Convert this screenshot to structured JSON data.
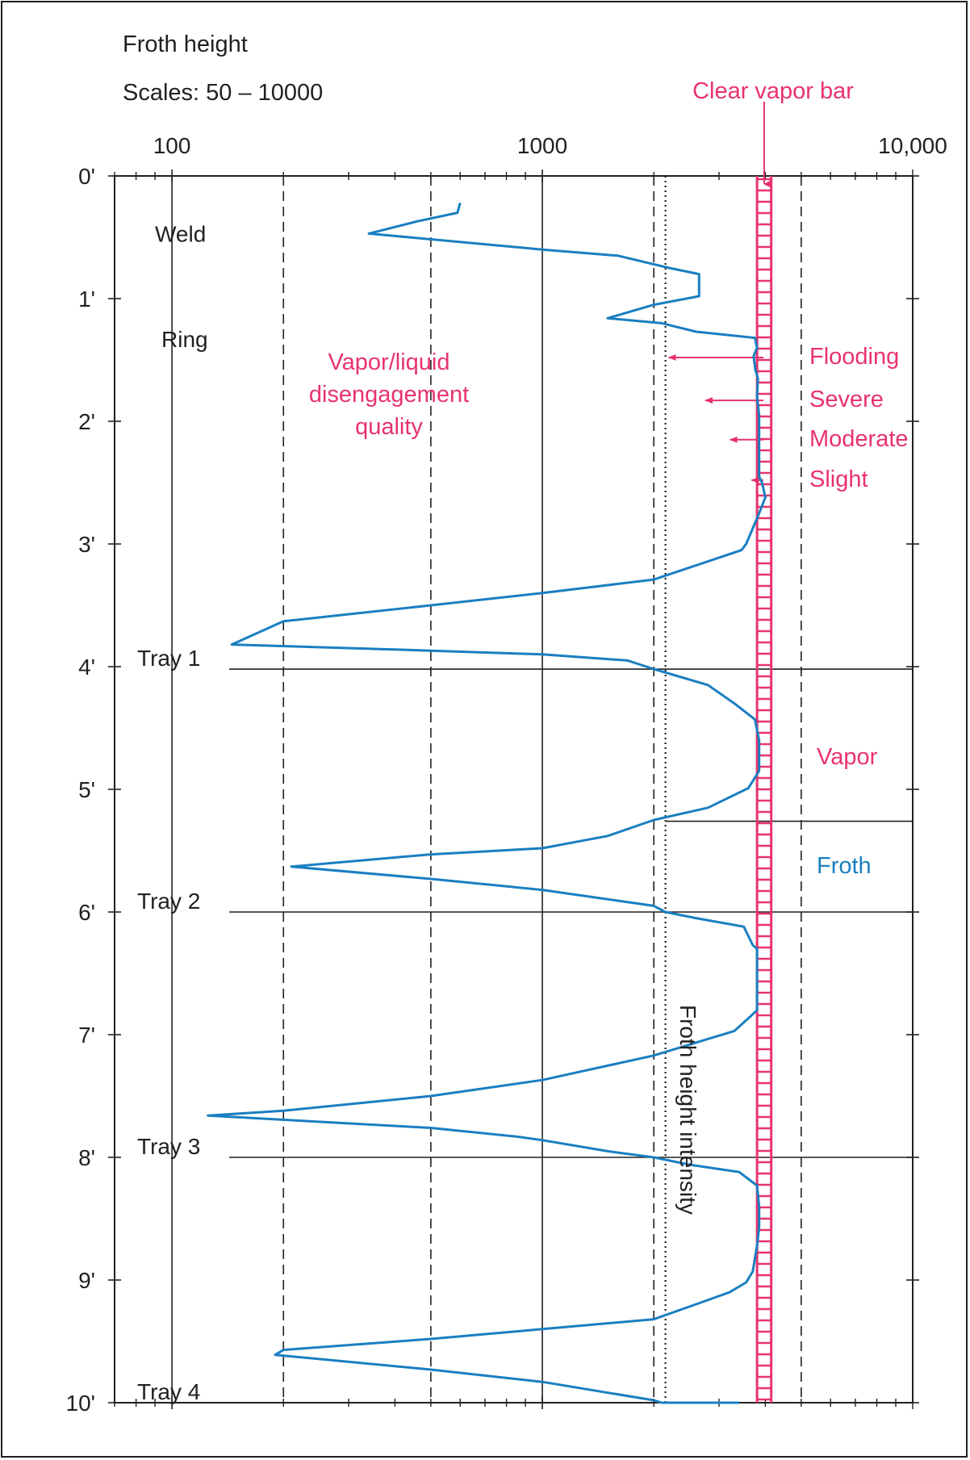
{
  "chart_data": {
    "type": "line",
    "title": "Froth height",
    "subtitle": "Scales: 50 – 10000",
    "x_scale": "log",
    "xlim": [
      70,
      10000
    ],
    "ylim": [
      0,
      10
    ],
    "y_inverted": true,
    "x_tick_labels": [
      {
        "value": 100,
        "label": "100"
      },
      {
        "value": 1000,
        "label": "1000"
      },
      {
        "value": 10000,
        "label": "10,000"
      }
    ],
    "y_tick_labels": [
      {
        "value": 0,
        "label": "0'"
      },
      {
        "value": 1,
        "label": "1'"
      },
      {
        "value": 2,
        "label": "2'"
      },
      {
        "value": 3,
        "label": "3'"
      },
      {
        "value": 4,
        "label": "4'"
      },
      {
        "value": 5,
        "label": "5'"
      },
      {
        "value": 6,
        "label": "6'"
      },
      {
        "value": 7,
        "label": "7'"
      },
      {
        "value": 8,
        "label": "8'"
      },
      {
        "value": 9,
        "label": "9'"
      },
      {
        "value": 10,
        "label": "10'"
      }
    ],
    "dashed_reference_lines_x": [
      200,
      500,
      2000,
      5000
    ],
    "dotted_reference_line_x": 2150,
    "dotted_line_label": "Froth height intensity",
    "clear_vapor_bar": {
      "label": "Clear vapor bar",
      "x_range": [
        3800,
        4150
      ],
      "color": "#e8336d"
    },
    "trays": [
      {
        "label": "Tray 1",
        "y": 4.02
      },
      {
        "label": "Tray 2",
        "y": 6.0
      },
      {
        "label": "Tray 3",
        "y": 8.0
      },
      {
        "label": "Tray 4",
        "y": 10.0
      }
    ],
    "vapor_froth_divider_y": 5.26,
    "annotations": [
      {
        "label": "Weld",
        "y": 0.47
      },
      {
        "label": "Ring",
        "y": 1.33
      },
      {
        "label": "Vapor/liquid",
        "line": 1
      },
      {
        "label": "disengagement",
        "line": 2
      },
      {
        "label": "quality",
        "line": 3
      },
      {
        "label": "Vapor",
        "y": 4.73
      },
      {
        "label": "Froth",
        "y": 5.62
      }
    ],
    "disengagement_levels": [
      {
        "label": "Flooding",
        "y": 1.48,
        "arrow_to_x": 2150
      },
      {
        "label": "Severe",
        "y": 1.83,
        "arrow_to_x": 2700
      },
      {
        "label": "Moderate",
        "y": 2.15,
        "arrow_to_x": 3150
      },
      {
        "label": "Slight",
        "y": 2.48,
        "arrow_to_x": 3600
      }
    ],
    "series": [
      {
        "color": "#1a7fc1",
        "points": [
          [
            600,
            0.22
          ],
          [
            590,
            0.3
          ],
          [
            460,
            0.37
          ],
          [
            340,
            0.47
          ],
          [
            1000,
            0.6
          ],
          [
            1600,
            0.65
          ],
          [
            2200,
            0.75
          ],
          [
            2650,
            0.8
          ],
          [
            2650,
            0.98
          ],
          [
            2000,
            1.05
          ],
          [
            1500,
            1.16
          ],
          [
            2100,
            1.2
          ],
          [
            2600,
            1.27
          ],
          [
            3750,
            1.32
          ],
          [
            3800,
            1.4
          ],
          [
            3720,
            1.47
          ],
          [
            3760,
            1.58
          ],
          [
            3820,
            1.65
          ],
          [
            3800,
            1.8
          ],
          [
            3850,
            1.95
          ],
          [
            3850,
            2.3
          ],
          [
            3850,
            2.45
          ],
          [
            3920,
            2.5
          ],
          [
            4000,
            2.62
          ],
          [
            3850,
            2.75
          ],
          [
            3550,
            3.0
          ],
          [
            3450,
            3.05
          ],
          [
            2000,
            3.29
          ],
          [
            1000,
            3.4
          ],
          [
            500,
            3.5
          ],
          [
            200,
            3.63
          ],
          [
            145,
            3.82
          ],
          [
            500,
            3.87
          ],
          [
            1000,
            3.9
          ],
          [
            1700,
            3.95
          ],
          [
            2000,
            4.02
          ],
          [
            2800,
            4.15
          ],
          [
            3300,
            4.3
          ],
          [
            3750,
            4.43
          ],
          [
            3850,
            4.6
          ],
          [
            3850,
            4.85
          ],
          [
            3600,
            4.99
          ],
          [
            2800,
            5.15
          ],
          [
            2000,
            5.25
          ],
          [
            1500,
            5.38
          ],
          [
            1000,
            5.48
          ],
          [
            500,
            5.53
          ],
          [
            210,
            5.63
          ],
          [
            500,
            5.73
          ],
          [
            1000,
            5.82
          ],
          [
            2000,
            5.95
          ],
          [
            2150,
            6.0
          ],
          [
            2600,
            6.05
          ],
          [
            3500,
            6.12
          ],
          [
            3700,
            6.27
          ],
          [
            3800,
            6.3
          ],
          [
            3800,
            6.8
          ],
          [
            3650,
            6.85
          ],
          [
            3300,
            6.97
          ],
          [
            2000,
            7.17
          ],
          [
            1000,
            7.37
          ],
          [
            500,
            7.5
          ],
          [
            200,
            7.62
          ],
          [
            125,
            7.66
          ],
          [
            500,
            7.76
          ],
          [
            850,
            7.83
          ],
          [
            1000,
            7.86
          ],
          [
            1500,
            7.95
          ],
          [
            2000,
            8.0
          ],
          [
            2500,
            8.06
          ],
          [
            3400,
            8.12
          ],
          [
            3800,
            8.23
          ],
          [
            3850,
            8.4
          ],
          [
            3850,
            8.57
          ],
          [
            3800,
            8.72
          ],
          [
            3700,
            8.93
          ],
          [
            3550,
            9.02
          ],
          [
            3200,
            9.1
          ],
          [
            2700,
            9.18
          ],
          [
            2000,
            9.32
          ],
          [
            1000,
            9.4
          ],
          [
            500,
            9.48
          ],
          [
            200,
            9.57
          ],
          [
            190,
            9.61
          ],
          [
            500,
            9.73
          ],
          [
            1000,
            9.83
          ],
          [
            2000,
            9.98
          ],
          [
            2100,
            10.0
          ],
          [
            3400,
            10.0
          ]
        ]
      }
    ]
  }
}
